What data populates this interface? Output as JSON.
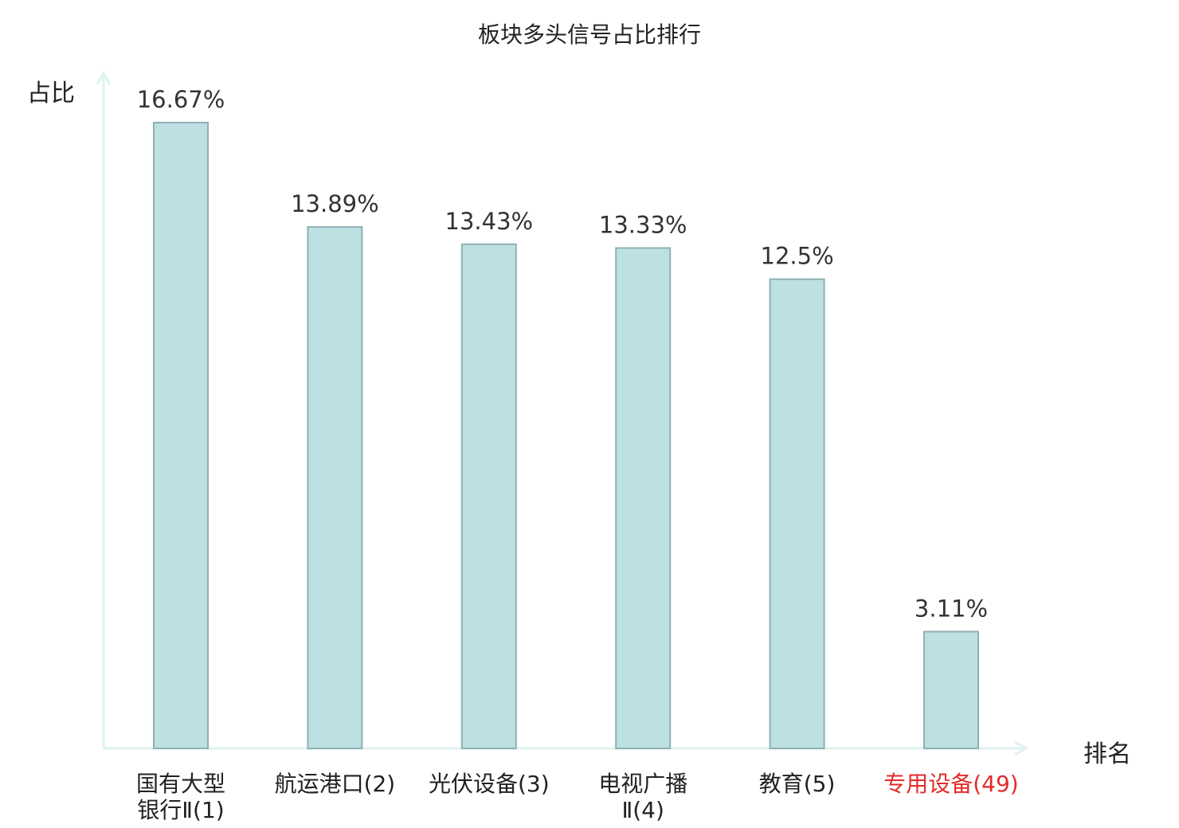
{
  "chart_data": {
    "type": "bar",
    "title": "板块多头信号占比排行",
    "ylabel": "占比",
    "xlabel": "排名",
    "unit": "%",
    "ylim": [
      0,
      18
    ],
    "categories": [
      [
        "国有大型",
        "银行Ⅱ(1)"
      ],
      [
        "航运港口(2)"
      ],
      [
        "光伏设备(3)"
      ],
      [
        "电视广播",
        "Ⅱ(4)"
      ],
      [
        "教育(5)"
      ],
      [
        "专用设备(49)"
      ]
    ],
    "values": [
      16.67,
      13.89,
      13.43,
      13.33,
      12.5,
      3.11
    ],
    "value_labels": [
      "16.67%",
      "13.89%",
      "13.43%",
      "13.33%",
      "12.5%",
      "3.11%"
    ],
    "highlight_index": 5,
    "grid": false,
    "legend": "none"
  },
  "colors": {
    "bar_fill": "#bde0e2",
    "bar_stroke": "#8fb0b2",
    "axis": "#dff2f0",
    "text": "#222222",
    "highlight": "#e32b2b"
  }
}
